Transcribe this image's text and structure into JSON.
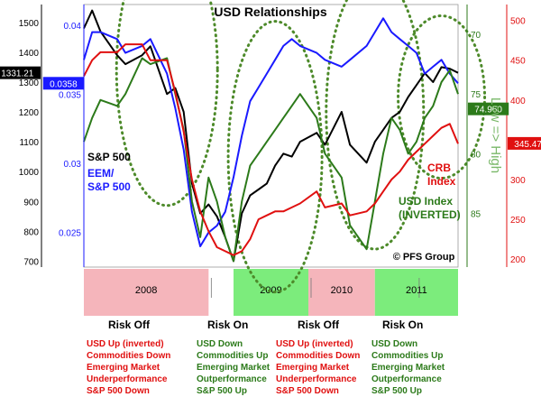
{
  "chart_data": {
    "type": "line",
    "title": "USD Relationships",
    "watermark": "© PFS Group",
    "x_range": [
      "2007-09",
      "2011-06"
    ],
    "axes": {
      "sp500": {
        "side": "left-outer",
        "min": 680,
        "max": 1560,
        "ticks": [
          "700",
          "800",
          "900",
          "1000",
          "1100",
          "1200",
          "1300",
          "1400",
          "1500"
        ],
        "current": "1331.21",
        "color": "#000000"
      },
      "eem": {
        "side": "left-inner",
        "min": 0.0225,
        "max": 0.0415,
        "ticks": [
          "0.025",
          "0.03",
          "0.035",
          "0.04"
        ],
        "current": "0.0358",
        "color": "#1a1aff"
      },
      "usd": {
        "side": "right-inner",
        "inverted": true,
        "min": 67.5,
        "max": 89.5,
        "ticks": [
          "70",
          "75",
          "80",
          "85"
        ],
        "current": "74.960",
        "color": "#2c7a1a",
        "label": "Low => High"
      },
      "crb": {
        "side": "right-outer",
        "min": 190,
        "max": 520,
        "ticks": [
          "200",
          "250",
          "300",
          "350",
          "400",
          "450",
          "500"
        ],
        "current": "345.47",
        "color": "#e01010"
      }
    },
    "series": [
      {
        "name": "S&P 500",
        "axis": "sp500",
        "color": "#000000",
        "points": [
          [
            "2007-09",
            1480
          ],
          [
            "2007-10",
            1540
          ],
          [
            "2007-11",
            1470
          ],
          [
            "2008-01",
            1390
          ],
          [
            "2008-02",
            1360
          ],
          [
            "2008-04",
            1390
          ],
          [
            "2008-05",
            1420
          ],
          [
            "2008-07",
            1260
          ],
          [
            "2008-08",
            1280
          ],
          [
            "2008-09",
            1200
          ],
          [
            "2008-10",
            960
          ],
          [
            "2008-11",
            860
          ],
          [
            "2008-12",
            890
          ],
          [
            "2009-01",
            850
          ],
          [
            "2009-02",
            780
          ],
          [
            "2009-03",
            700
          ],
          [
            "2009-04",
            860
          ],
          [
            "2009-05",
            920
          ],
          [
            "2009-06",
            940
          ],
          [
            "2009-07",
            960
          ],
          [
            "2009-08",
            1020
          ],
          [
            "2009-09",
            1060
          ],
          [
            "2009-10",
            1050
          ],
          [
            "2009-11",
            1100
          ],
          [
            "2010-01",
            1130
          ],
          [
            "2010-02",
            1090
          ],
          [
            "2010-04",
            1200
          ],
          [
            "2010-05",
            1090
          ],
          [
            "2010-07",
            1030
          ],
          [
            "2010-08",
            1100
          ],
          [
            "2010-09",
            1140
          ],
          [
            "2010-10",
            1180
          ],
          [
            "2010-11",
            1200
          ],
          [
            "2010-12",
            1250
          ],
          [
            "2011-01",
            1290
          ],
          [
            "2011-02",
            1330
          ],
          [
            "2011-03",
            1300
          ],
          [
            "2011-04",
            1350
          ],
          [
            "2011-05",
            1345
          ],
          [
            "2011-06",
            1331
          ]
        ]
      },
      {
        "name": "EEM/ S&P 500",
        "axis": "eem",
        "color": "#1a1aff",
        "points": [
          [
            "2007-09",
            0.0375
          ],
          [
            "2007-10",
            0.0395
          ],
          [
            "2007-11",
            0.0395
          ],
          [
            "2008-01",
            0.039
          ],
          [
            "2008-02",
            0.038
          ],
          [
            "2008-04",
            0.0385
          ],
          [
            "2008-05",
            0.039
          ],
          [
            "2008-07",
            0.0365
          ],
          [
            "2008-08",
            0.034
          ],
          [
            "2008-09",
            0.031
          ],
          [
            "2008-10",
            0.0265
          ],
          [
            "2008-11",
            0.024
          ],
          [
            "2008-12",
            0.025
          ],
          [
            "2009-01",
            0.0255
          ],
          [
            "2009-02",
            0.0265
          ],
          [
            "2009-03",
            0.029
          ],
          [
            "2009-04",
            0.032
          ],
          [
            "2009-05",
            0.0345
          ],
          [
            "2009-06",
            0.0355
          ],
          [
            "2009-07",
            0.0365
          ],
          [
            "2009-08",
            0.0375
          ],
          [
            "2009-09",
            0.0385
          ],
          [
            "2009-10",
            0.039
          ],
          [
            "2009-11",
            0.0385
          ],
          [
            "2010-01",
            0.038
          ],
          [
            "2010-02",
            0.0375
          ],
          [
            "2010-04",
            0.037
          ],
          [
            "2010-05",
            0.0375
          ],
          [
            "2010-07",
            0.0385
          ],
          [
            "2010-08",
            0.0395
          ],
          [
            "2010-09",
            0.0405
          ],
          [
            "2010-10",
            0.0395
          ],
          [
            "2010-11",
            0.039
          ],
          [
            "2010-12",
            0.0385
          ],
          [
            "2011-01",
            0.038
          ],
          [
            "2011-02",
            0.0365
          ],
          [
            "2011-03",
            0.037
          ],
          [
            "2011-04",
            0.0375
          ],
          [
            "2011-05",
            0.0365
          ],
          [
            "2011-06",
            0.0358
          ]
        ]
      },
      {
        "name": "USD Index (INVERTED)",
        "axis": "usd",
        "color": "#2c7a1a",
        "points": [
          [
            "2007-09",
            79
          ],
          [
            "2007-10",
            77
          ],
          [
            "2007-11",
            75.5
          ],
          [
            "2008-01",
            76
          ],
          [
            "2008-02",
            75
          ],
          [
            "2008-04",
            72
          ],
          [
            "2008-05",
            72.5
          ],
          [
            "2008-07",
            72
          ],
          [
            "2008-08",
            75
          ],
          [
            "2008-09",
            78
          ],
          [
            "2008-10",
            84
          ],
          [
            "2008-11",
            87
          ],
          [
            "2008-12",
            82
          ],
          [
            "2009-01",
            84
          ],
          [
            "2009-02",
            87
          ],
          [
            "2009-03",
            89
          ],
          [
            "2009-04",
            84
          ],
          [
            "2009-05",
            81
          ],
          [
            "2009-06",
            80
          ],
          [
            "2009-07",
            79
          ],
          [
            "2009-08",
            78
          ],
          [
            "2009-09",
            77
          ],
          [
            "2009-10",
            76
          ],
          [
            "2009-11",
            75
          ],
          [
            "2010-01",
            77
          ],
          [
            "2010-02",
            80
          ],
          [
            "2010-04",
            82
          ],
          [
            "2010-05",
            86
          ],
          [
            "2010-07",
            88
          ],
          [
            "2010-08",
            84
          ],
          [
            "2010-09",
            80
          ],
          [
            "2010-10",
            77
          ],
          [
            "2010-11",
            78
          ],
          [
            "2010-12",
            80
          ],
          [
            "2011-01",
            79
          ],
          [
            "2011-02",
            77
          ],
          [
            "2011-03",
            76
          ],
          [
            "2011-04",
            74
          ],
          [
            "2011-05",
            73
          ],
          [
            "2011-06",
            75
          ]
        ]
      },
      {
        "name": "CRB Index",
        "axis": "crb",
        "color": "#e01010",
        "points": [
          [
            "2007-09",
            430
          ],
          [
            "2007-10",
            450
          ],
          [
            "2007-11",
            460
          ],
          [
            "2008-01",
            460
          ],
          [
            "2008-02",
            470
          ],
          [
            "2008-04",
            470
          ],
          [
            "2008-05",
            450
          ],
          [
            "2008-07",
            450
          ],
          [
            "2008-08",
            410
          ],
          [
            "2008-09",
            360
          ],
          [
            "2008-10",
            300
          ],
          [
            "2008-11",
            260
          ],
          [
            "2008-12",
            235
          ],
          [
            "2009-01",
            215
          ],
          [
            "2009-02",
            210
          ],
          [
            "2009-03",
            205
          ],
          [
            "2009-04",
            210
          ],
          [
            "2009-05",
            225
          ],
          [
            "2009-06",
            250
          ],
          [
            "2009-07",
            255
          ],
          [
            "2009-08",
            260
          ],
          [
            "2009-09",
            260
          ],
          [
            "2009-10",
            265
          ],
          [
            "2009-11",
            270
          ],
          [
            "2010-01",
            285
          ],
          [
            "2010-02",
            265
          ],
          [
            "2010-04",
            270
          ],
          [
            "2010-05",
            255
          ],
          [
            "2010-07",
            260
          ],
          [
            "2010-08",
            270
          ],
          [
            "2010-09",
            285
          ],
          [
            "2010-10",
            300
          ],
          [
            "2010-11",
            310
          ],
          [
            "2010-12",
            325
          ],
          [
            "2011-01",
            335
          ],
          [
            "2011-02",
            345
          ],
          [
            "2011-03",
            355
          ],
          [
            "2011-04",
            365
          ],
          [
            "2011-05",
            370
          ],
          [
            "2011-06",
            345
          ]
        ]
      }
    ],
    "series_labels": [
      {
        "text": [
          "S&P 500"
        ],
        "color": "#000000"
      },
      {
        "text": [
          "EEM/",
          "S&P 500"
        ],
        "color": "#1a1aff"
      },
      {
        "text": [
          "CRB",
          "Index"
        ],
        "color": "#e01010"
      },
      {
        "text": [
          "USD Index",
          "(INVERTED)"
        ],
        "color": "#2c7a1a"
      }
    ],
    "regimes": [
      {
        "label": "2008",
        "from": "2007-09",
        "to": "2008-12",
        "type": "risk-off",
        "color": "#f5b5bb"
      },
      {
        "label": "2009",
        "from": "2009-03",
        "to": "2009-12",
        "type": "risk-on",
        "color": "#7cec7c"
      },
      {
        "label": "2010",
        "from": "2009-12",
        "to": "2010-08",
        "type": "risk-off",
        "color": "#f5b5bb"
      },
      {
        "label": "2011",
        "from": "2010-08",
        "to": "2011-06",
        "type": "risk-on",
        "color": "#7cec7c"
      }
    ]
  },
  "annotations": [
    {
      "heading": "Risk Off",
      "color": "red",
      "lines": [
        "USD Up (inverted)",
        "Commodities Down",
        "Emerging Market",
        "Underperformance",
        "S&P 500 Down"
      ]
    },
    {
      "heading": "Risk On",
      "color": "green",
      "lines": [
        "USD Down",
        "Commodities Up",
        "Emerging Market",
        "Outperformance",
        "S&P 500 Up"
      ]
    },
    {
      "heading": "Risk Off",
      "color": "red",
      "lines": [
        "USD Up (inverted)",
        "Commodities Down",
        "Emerging Market",
        "Underperformance",
        "S&P 500 Down"
      ]
    },
    {
      "heading": "Risk On",
      "color": "green",
      "lines": [
        "USD Down",
        "Commodities Up",
        "Emerging Market",
        "Outperformance",
        "S&P 500 Up"
      ]
    }
  ]
}
